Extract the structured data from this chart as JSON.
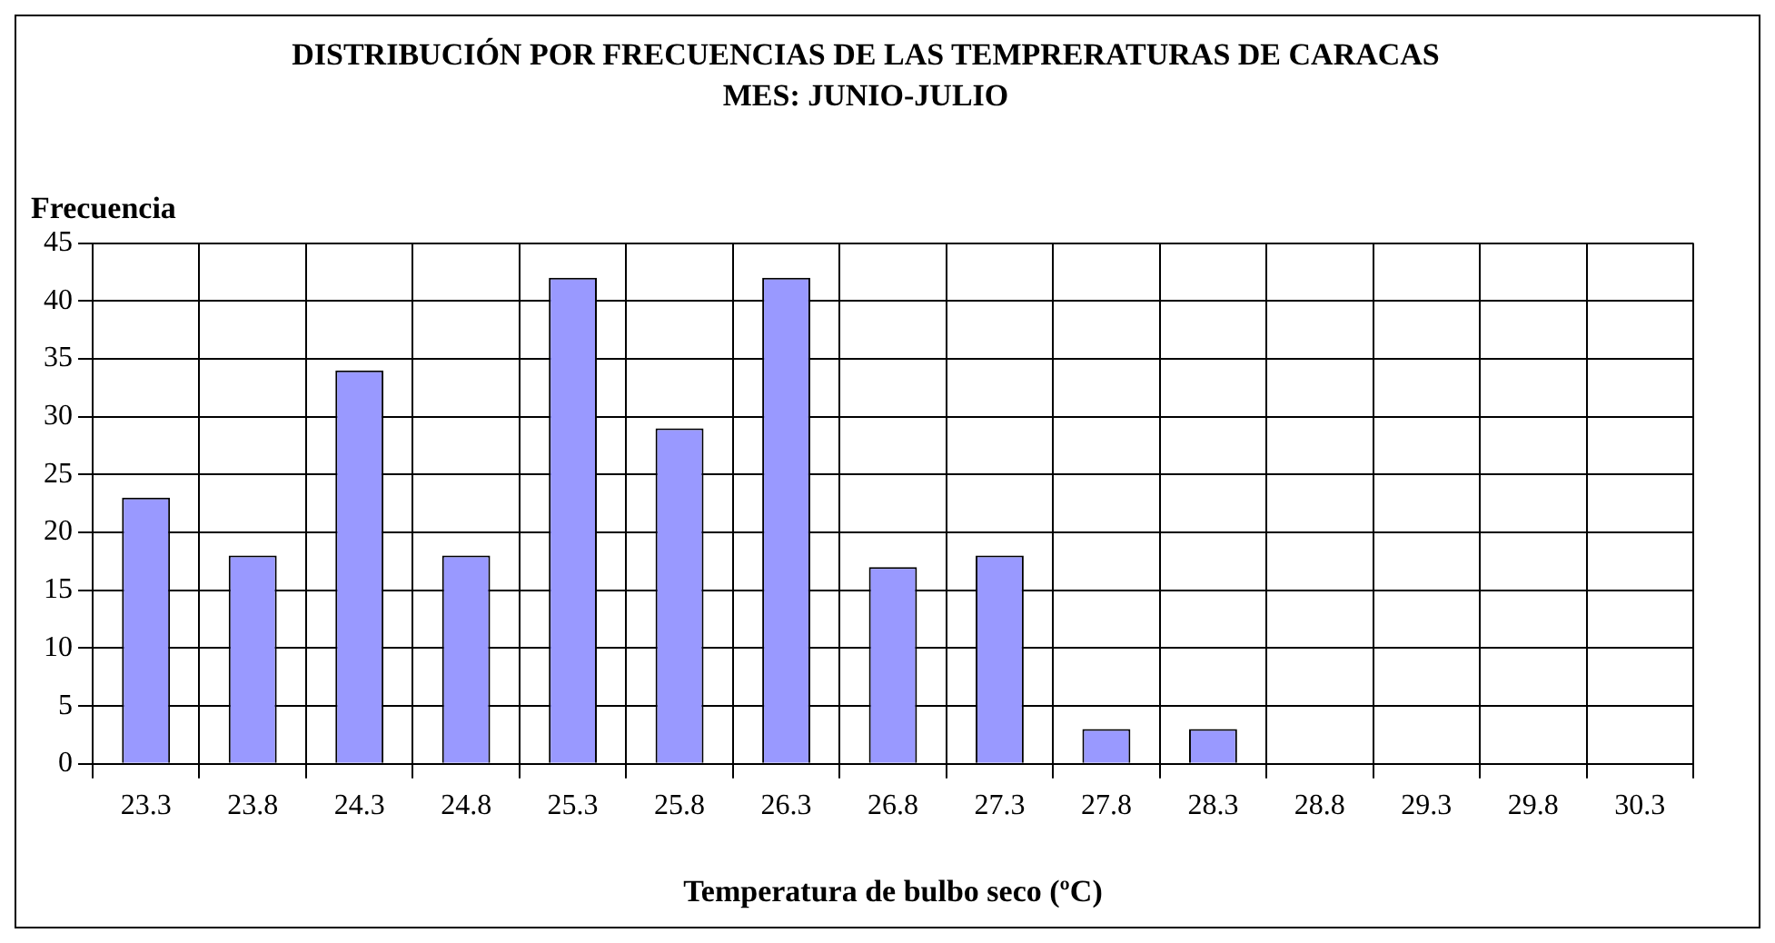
{
  "chart_data": {
    "type": "bar",
    "title": "DISTRIBUCIÓN POR FRECUENCIAS DE LAS TEMPRERATURAS DE CARACAS",
    "subtitle": "MES: JUNIO-JULIO",
    "xlabel": "Temperatura de bulbo seco (ºC)",
    "ylabel": "Frecuencia",
    "categories": [
      "23.3",
      "23.8",
      "24.3",
      "24.8",
      "25.3",
      "25.8",
      "26.3",
      "26.8",
      "27.3",
      "27.8",
      "28.3",
      "28.8",
      "29.3",
      "29.8",
      "30.3"
    ],
    "values": [
      23,
      18,
      34,
      18,
      42,
      29,
      42,
      17,
      18,
      3,
      3,
      0,
      0,
      0,
      0
    ],
    "color": "#9999ff",
    "ylim": [
      0,
      45
    ],
    "yticks": [
      0,
      5,
      10,
      15,
      20,
      25,
      30,
      35,
      40,
      45
    ],
    "grid": true,
    "legend": false
  }
}
